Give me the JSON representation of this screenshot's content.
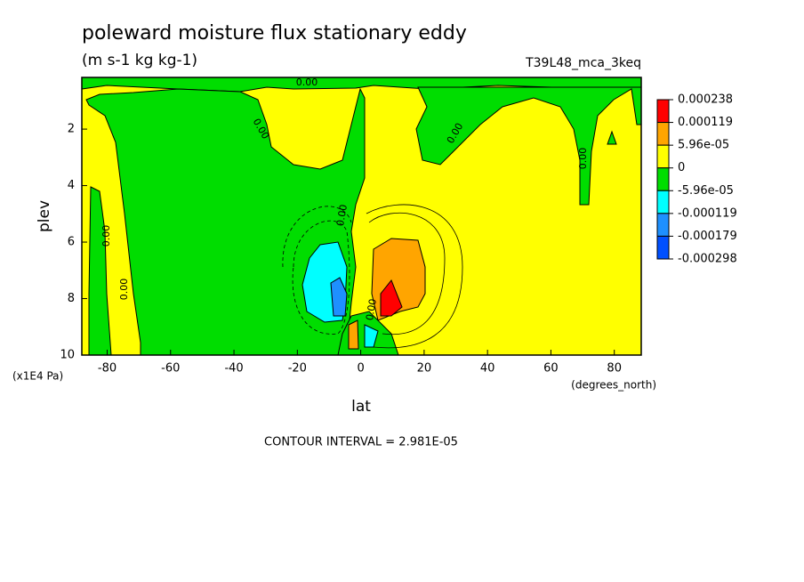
{
  "chart_data": {
    "type": "contour",
    "title": "poleward moisture flux stationary eddy",
    "subtitle": "(m s-1 kg kg-1)",
    "dataset": "T39L48_mca_3keq",
    "x_label": "lat",
    "x_units": "(degrees_north)",
    "y_label": "plev",
    "y_units": "(x1E4 Pa)",
    "footnote": "CONTOUR INTERVAL = 2.981E-05",
    "contour_label": "0.00",
    "xlim": [
      -88,
      88.5
    ],
    "xticks": [
      -80,
      -60,
      -40,
      -20,
      0,
      20,
      40,
      60,
      80
    ],
    "ylim": [
      0.17,
      10
    ],
    "yticks": [
      2,
      4,
      6,
      8,
      10
    ],
    "colorbar": {
      "levels": [
        0.000238,
        0.000119,
        {
          "value": 5.96e-05,
          "label": "5.96e-05"
        },
        0,
        {
          "value": -5.96e-05,
          "label": "-5.96e-05"
        },
        -0.000119,
        -0.000179,
        -0.000298
      ],
      "colors": [
        "#ff0000",
        "#ffa500",
        "#ffff00",
        "#00dd00",
        "#00ffff",
        "#1e90ff",
        "#0050ff"
      ]
    }
  }
}
